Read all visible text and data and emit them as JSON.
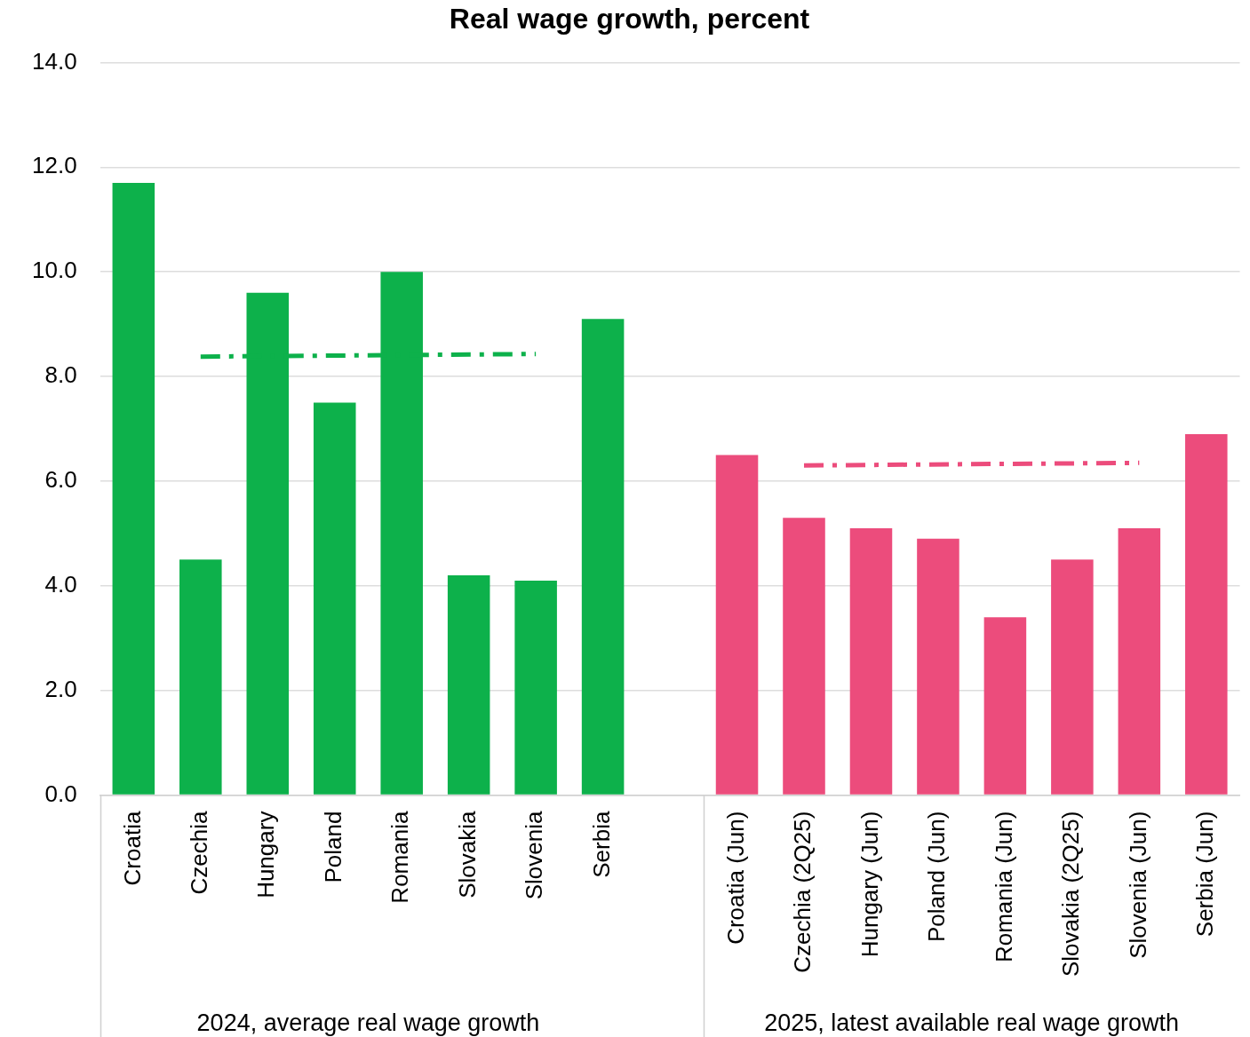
{
  "chart_data": {
    "type": "bar",
    "title": "Real wage growth, percent",
    "categories": [
      "Croatia",
      "Czechia",
      "Hungary",
      "Poland",
      "Romania",
      "Slovakia",
      "Slovenia",
      "Serbia",
      null,
      "Croatia (Jun)",
      "Czechia (2Q25)",
      "Hungary (Jun)",
      "Poland (Jun)",
      "Romania (Jun)",
      "Slovakia (2Q25)",
      "Slovenia (Jun)",
      "Serbia (Jun)"
    ],
    "series": [
      {
        "colors": [
          "#0db14b",
          "#0db14b",
          "#0db14b",
          "#0db14b",
          "#0db14b",
          "#0db14b",
          "#0db14b",
          "#0db14b",
          "#0db14b",
          "#ec4c7c",
          "#ec4c7c",
          "#ec4c7c",
          "#ec4c7c",
          "#ec4c7c",
          "#ec4c7c",
          "#ec4c7c",
          "#ec4c7c"
        ],
        "values": [
          11.7,
          4.5,
          9.6,
          7.5,
          10.0,
          4.2,
          4.1,
          9.1,
          null,
          6.5,
          5.3,
          5.1,
          4.9,
          3.4,
          4.5,
          5.1,
          6.9
        ]
      },
      {
        "type": "line",
        "color": "#0db14b",
        "line_style": "dashed",
        "marker": "none",
        "values": [
          null,
          8.38,
          null,
          null,
          null,
          null,
          8.43,
          null,
          null,
          null,
          null,
          null,
          null,
          null,
          null,
          null,
          null
        ]
      },
      {
        "type": "line",
        "color": "#ec4c7c",
        "line_style": "dashed",
        "marker": "none",
        "values": [
          null,
          null,
          null,
          null,
          null,
          null,
          null,
          null,
          null,
          null,
          6.3,
          null,
          null,
          null,
          null,
          6.35,
          null
        ]
      }
    ],
    "ylim": [
      0,
      14
    ],
    "yticks": [
      {
        "value": 0,
        "label": "0.0"
      },
      {
        "value": 2,
        "label": "2.0"
      },
      {
        "value": 4,
        "label": "4.0"
      },
      {
        "value": 6,
        "label": "6.0"
      },
      {
        "value": 8,
        "label": "8.0"
      },
      {
        "value": 10,
        "label": "10.0"
      },
      {
        "value": 12,
        "label": "12.0"
      },
      {
        "value": 14,
        "label": "14.0"
      }
    ],
    "grid": "y",
    "legend": false,
    "annotations": [
      "2024, average real wage growth",
      "2025, latest available real wage growth"
    ]
  }
}
